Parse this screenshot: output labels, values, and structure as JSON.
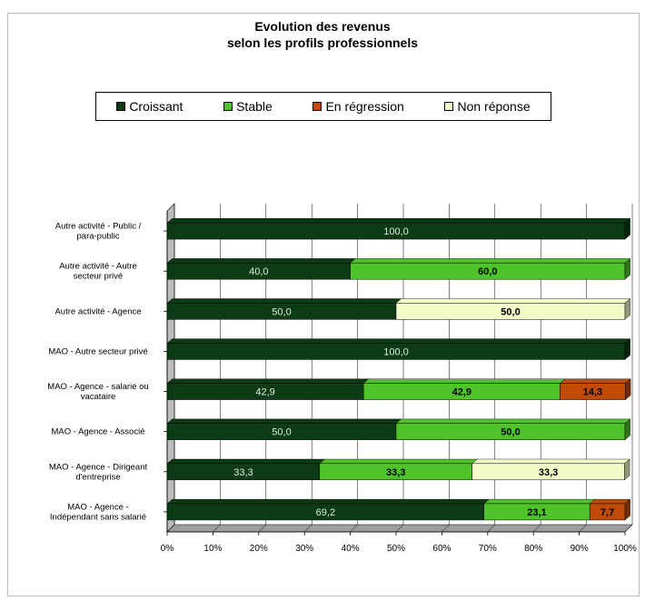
{
  "chart_data": {
    "type": "bar",
    "orientation": "horizontal",
    "stacked": "percent",
    "title": [
      "Evolution des revenus",
      "selon les profils professionnels"
    ],
    "categories": [
      [
        "Autre activité - Public /",
        "para-public"
      ],
      [
        "Autre activité - Autre",
        "secteur privé"
      ],
      [
        "Autre activité - Agence"
      ],
      [
        "MAO - Autre secteur privé"
      ],
      [
        "MAO - Agence - salarié ou",
        "vacataire"
      ],
      [
        "MAO - Agence - Associé"
      ],
      [
        "MAO - Agence - Dirigeant",
        "d'entreprise"
      ],
      [
        "MAO - Agence -",
        "Indépendant sans salarié"
      ]
    ],
    "series": [
      {
        "name": "Croissant",
        "color": "#0d3b16",
        "label_color": "#d8f0d8",
        "values": [
          100,
          40,
          50,
          100,
          42.9,
          50,
          33.3,
          69.2
        ],
        "labels": [
          "100,0",
          "40,0",
          "50,0",
          "100,0",
          "42,9",
          "50,0",
          "33,3",
          "69,2"
        ]
      },
      {
        "name": "Stable",
        "color": "#4ec42a",
        "label_color": "#000000",
        "values": [
          0,
          60,
          0,
          0,
          42.9,
          50,
          33.3,
          23.1
        ],
        "labels": [
          "",
          "60,0",
          "",
          "",
          "42,9",
          "50,0",
          "33,3",
          "23,1"
        ]
      },
      {
        "name": "En régression",
        "color": "#c04a08",
        "label_color": "#000000",
        "values": [
          0,
          0,
          0,
          0,
          14.3,
          0,
          0,
          7.7
        ],
        "labels": [
          "",
          "",
          "",
          "",
          "14,3",
          "",
          "",
          "7,7"
        ]
      },
      {
        "name": "Non réponse",
        "color": "#f4fbc8",
        "label_color": "#000000",
        "values": [
          0,
          0,
          50,
          0,
          0,
          0,
          33.3,
          0
        ],
        "labels": [
          "",
          "",
          "50,0",
          "",
          "",
          "",
          "33,3",
          ""
        ]
      }
    ],
    "xlim": [
      0,
      100
    ],
    "xticks": [
      "0%",
      "10%",
      "20%",
      "30%",
      "40%",
      "50%",
      "60%",
      "70%",
      "80%",
      "90%",
      "100%"
    ],
    "grid": true,
    "legend_position": "top"
  }
}
